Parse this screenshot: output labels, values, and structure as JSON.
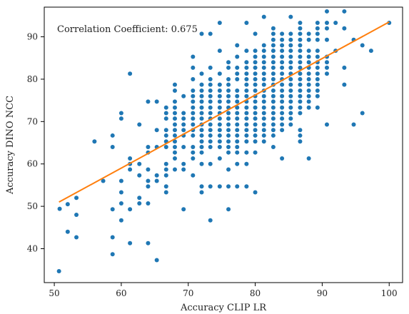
{
  "chart_data": {
    "type": "scatter",
    "xlabel": "Accuracy CLIP LR",
    "ylabel": "Accuracy DINO NCC",
    "annotation": "Correlation Coefficient: 0.675",
    "xlim": [
      48.5,
      102
    ],
    "ylim": [
      32,
      97
    ],
    "xticks": [
      50,
      60,
      70,
      80,
      90,
      100
    ],
    "yticks": [
      40,
      50,
      60,
      70,
      80,
      90
    ],
    "grid": false,
    "colors": {
      "points": "#1f77b4",
      "fit": "#ff7f0e",
      "axes": "#000000"
    },
    "fit_line": {
      "x": [
        50.7,
        100
      ],
      "y": [
        51.0,
        93.5
      ]
    },
    "points": [
      [
        50.7,
        34.7
      ],
      [
        50.8,
        49.4
      ],
      [
        52,
        50.5
      ],
      [
        52,
        44
      ],
      [
        53.3,
        52
      ],
      [
        53.3,
        48
      ],
      [
        53.3,
        42.7
      ],
      [
        56,
        65.3
      ],
      [
        57.3,
        56
      ],
      [
        58.7,
        66.7
      ],
      [
        58.7,
        64
      ],
      [
        58.7,
        49.3
      ],
      [
        58.7,
        42.7
      ],
      [
        58.7,
        38.7
      ],
      [
        60,
        72
      ],
      [
        60,
        70.7
      ],
      [
        60,
        56
      ],
      [
        60,
        53.3
      ],
      [
        60,
        50.7
      ],
      [
        60,
        46.7
      ],
      [
        61.3,
        81.3
      ],
      [
        61.3,
        61.3
      ],
      [
        61.3,
        60
      ],
      [
        61.3,
        58.7
      ],
      [
        61.3,
        49.3
      ],
      [
        61.3,
        41.3
      ],
      [
        62.7,
        69.3
      ],
      [
        62.7,
        60
      ],
      [
        62.7,
        57.3
      ],
      [
        62.7,
        52
      ],
      [
        62.7,
        50.7
      ],
      [
        64,
        74.7
      ],
      [
        64,
        64
      ],
      [
        64,
        62.7
      ],
      [
        64,
        58.7
      ],
      [
        64,
        56
      ],
      [
        64,
        54.7
      ],
      [
        64,
        50.7
      ],
      [
        64,
        41.3
      ],
      [
        65.3,
        74.7
      ],
      [
        65.3,
        68
      ],
      [
        65.3,
        64
      ],
      [
        65.3,
        57.3
      ],
      [
        65.3,
        56
      ],
      [
        65.3,
        37.3
      ],
      [
        66.7,
        73.3
      ],
      [
        66.7,
        72
      ],
      [
        66.7,
        70.7
      ],
      [
        66.7,
        68
      ],
      [
        66.7,
        66.7
      ],
      [
        66.7,
        65.3
      ],
      [
        66.7,
        64
      ],
      [
        66.7,
        60
      ],
      [
        66.7,
        58.7
      ],
      [
        66.7,
        57.3
      ],
      [
        66.7,
        54.7
      ],
      [
        66.7,
        53.3
      ],
      [
        68,
        78.7
      ],
      [
        68,
        77.3
      ],
      [
        68,
        74.7
      ],
      [
        68,
        73.3
      ],
      [
        68,
        72
      ],
      [
        68,
        70.7
      ],
      [
        68,
        69.3
      ],
      [
        68,
        68
      ],
      [
        68,
        66.7
      ],
      [
        68,
        65.3
      ],
      [
        68,
        64
      ],
      [
        68,
        62.7
      ],
      [
        68,
        61.3
      ],
      [
        68,
        58.7
      ],
      [
        69.3,
        76
      ],
      [
        69.3,
        72
      ],
      [
        69.3,
        70.7
      ],
      [
        69.3,
        69.3
      ],
      [
        69.3,
        68
      ],
      [
        69.3,
        66.7
      ],
      [
        69.3,
        64
      ],
      [
        69.3,
        60
      ],
      [
        69.3,
        58.7
      ],
      [
        69.3,
        49.3
      ],
      [
        70.7,
        85.3
      ],
      [
        70.7,
        82.7
      ],
      [
        70.7,
        80
      ],
      [
        70.7,
        77.3
      ],
      [
        70.7,
        76
      ],
      [
        70.7,
        74.7
      ],
      [
        70.7,
        73.3
      ],
      [
        70.7,
        72
      ],
      [
        70.7,
        70.7
      ],
      [
        70.7,
        69.3
      ],
      [
        70.7,
        68
      ],
      [
        70.7,
        66.7
      ],
      [
        70.7,
        64
      ],
      [
        70.7,
        62.7
      ],
      [
        70.7,
        61.3
      ],
      [
        70.7,
        57.3
      ],
      [
        72,
        90.7
      ],
      [
        72,
        81.3
      ],
      [
        72,
        78.7
      ],
      [
        72,
        77.3
      ],
      [
        72,
        76
      ],
      [
        72,
        74.7
      ],
      [
        72,
        73.3
      ],
      [
        72,
        72
      ],
      [
        72,
        70.7
      ],
      [
        72,
        69.3
      ],
      [
        72,
        68
      ],
      [
        72,
        66.7
      ],
      [
        72,
        65.3
      ],
      [
        72,
        64
      ],
      [
        72,
        62.7
      ],
      [
        72,
        60
      ],
      [
        72,
        54.7
      ],
      [
        72,
        53.3
      ],
      [
        73.3,
        90.7
      ],
      [
        73.3,
        82.7
      ],
      [
        73.3,
        80
      ],
      [
        73.3,
        78.7
      ],
      [
        73.3,
        77.3
      ],
      [
        73.3,
        76
      ],
      [
        73.3,
        74.7
      ],
      [
        73.3,
        73.3
      ],
      [
        73.3,
        72
      ],
      [
        73.3,
        70.7
      ],
      [
        73.3,
        69.3
      ],
      [
        73.3,
        68
      ],
      [
        73.3,
        66.7
      ],
      [
        73.3,
        65.3
      ],
      [
        73.3,
        64
      ],
      [
        73.3,
        60
      ],
      [
        73.3,
        54.7
      ],
      [
        73.3,
        46.7
      ],
      [
        74.7,
        93.3
      ],
      [
        74.7,
        86.7
      ],
      [
        74.7,
        81.3
      ],
      [
        74.7,
        78.7
      ],
      [
        74.7,
        77.3
      ],
      [
        74.7,
        76
      ],
      [
        74.7,
        74.7
      ],
      [
        74.7,
        73.3
      ],
      [
        74.7,
        72
      ],
      [
        74.7,
        70.7
      ],
      [
        74.7,
        69.3
      ],
      [
        74.7,
        68
      ],
      [
        74.7,
        66.7
      ],
      [
        74.7,
        65.3
      ],
      [
        74.7,
        64
      ],
      [
        74.7,
        61.3
      ],
      [
        74.7,
        54.7
      ],
      [
        76,
        84
      ],
      [
        76,
        82.7
      ],
      [
        76,
        80
      ],
      [
        76,
        78.7
      ],
      [
        76,
        77.3
      ],
      [
        76,
        76
      ],
      [
        76,
        74.7
      ],
      [
        76,
        73.3
      ],
      [
        76,
        72
      ],
      [
        76,
        70.7
      ],
      [
        76,
        69.3
      ],
      [
        76,
        68
      ],
      [
        76,
        66.7
      ],
      [
        76,
        65.3
      ],
      [
        76,
        64
      ],
      [
        76,
        62.7
      ],
      [
        76,
        58.7
      ],
      [
        76,
        54.7
      ],
      [
        76,
        49.3
      ],
      [
        77.3,
        88
      ],
      [
        77.3,
        85.3
      ],
      [
        77.3,
        82.7
      ],
      [
        77.3,
        81.3
      ],
      [
        77.3,
        80
      ],
      [
        77.3,
        77.3
      ],
      [
        77.3,
        76
      ],
      [
        77.3,
        74.7
      ],
      [
        77.3,
        73.3
      ],
      [
        77.3,
        72
      ],
      [
        77.3,
        70.7
      ],
      [
        77.3,
        69.3
      ],
      [
        77.3,
        68
      ],
      [
        77.3,
        66.7
      ],
      [
        77.3,
        65.3
      ],
      [
        77.3,
        64
      ],
      [
        77.3,
        62.7
      ],
      [
        77.3,
        60
      ],
      [
        77.3,
        54.7
      ],
      [
        78.7,
        93.3
      ],
      [
        78.7,
        86.7
      ],
      [
        78.7,
        84
      ],
      [
        78.7,
        82.7
      ],
      [
        78.7,
        81.3
      ],
      [
        78.7,
        80
      ],
      [
        78.7,
        78.7
      ],
      [
        78.7,
        77.3
      ],
      [
        78.7,
        76
      ],
      [
        78.7,
        74.7
      ],
      [
        78.7,
        73.3
      ],
      [
        78.7,
        72
      ],
      [
        78.7,
        70.7
      ],
      [
        78.7,
        69.3
      ],
      [
        78.7,
        68
      ],
      [
        78.7,
        66.7
      ],
      [
        78.7,
        65.3
      ],
      [
        78.7,
        62.7
      ],
      [
        78.7,
        60
      ],
      [
        78.7,
        54.7
      ],
      [
        80,
        90.7
      ],
      [
        80,
        86.7
      ],
      [
        80,
        85.3
      ],
      [
        80,
        84
      ],
      [
        80,
        82.7
      ],
      [
        80,
        81.3
      ],
      [
        80,
        80
      ],
      [
        80,
        78.7
      ],
      [
        80,
        77.3
      ],
      [
        80,
        76
      ],
      [
        80,
        74.7
      ],
      [
        80,
        73.3
      ],
      [
        80,
        72
      ],
      [
        80,
        70.7
      ],
      [
        80,
        69.3
      ],
      [
        80,
        68
      ],
      [
        80,
        66.7
      ],
      [
        80,
        65.3
      ],
      [
        80,
        62.7
      ],
      [
        80,
        53.3
      ],
      [
        81.3,
        94.7
      ],
      [
        81.3,
        88
      ],
      [
        81.3,
        86.7
      ],
      [
        81.3,
        85.3
      ],
      [
        81.3,
        84
      ],
      [
        81.3,
        82.7
      ],
      [
        81.3,
        81.3
      ],
      [
        81.3,
        80
      ],
      [
        81.3,
        78.7
      ],
      [
        81.3,
        77.3
      ],
      [
        81.3,
        76
      ],
      [
        81.3,
        74.7
      ],
      [
        81.3,
        73.3
      ],
      [
        81.3,
        72
      ],
      [
        81.3,
        70.7
      ],
      [
        81.3,
        69.3
      ],
      [
        81.3,
        68
      ],
      [
        81.3,
        66.7
      ],
      [
        81.3,
        65.3
      ],
      [
        82.7,
        92
      ],
      [
        82.7,
        90.7
      ],
      [
        82.7,
        89.3
      ],
      [
        82.7,
        88
      ],
      [
        82.7,
        86.7
      ],
      [
        82.7,
        85.3
      ],
      [
        82.7,
        84
      ],
      [
        82.7,
        82.7
      ],
      [
        82.7,
        81.3
      ],
      [
        82.7,
        80
      ],
      [
        82.7,
        78.7
      ],
      [
        82.7,
        77.3
      ],
      [
        82.7,
        76
      ],
      [
        82.7,
        74.7
      ],
      [
        82.7,
        73.3
      ],
      [
        82.7,
        72
      ],
      [
        82.7,
        70.7
      ],
      [
        82.7,
        69.3
      ],
      [
        82.7,
        68
      ],
      [
        82.7,
        66.7
      ],
      [
        82.7,
        64
      ],
      [
        84,
        90.7
      ],
      [
        84,
        89.3
      ],
      [
        84,
        88
      ],
      [
        84,
        86.7
      ],
      [
        84,
        85.3
      ],
      [
        84,
        84
      ],
      [
        84,
        82.7
      ],
      [
        84,
        81.3
      ],
      [
        84,
        80
      ],
      [
        84,
        78.7
      ],
      [
        84,
        77.3
      ],
      [
        84,
        76
      ],
      [
        84,
        74.7
      ],
      [
        84,
        73.3
      ],
      [
        84,
        72
      ],
      [
        84,
        70.7
      ],
      [
        84,
        69.3
      ],
      [
        84,
        68
      ],
      [
        84,
        61.3
      ],
      [
        85.3,
        94.7
      ],
      [
        85.3,
        90.7
      ],
      [
        85.3,
        89.3
      ],
      [
        85.3,
        88
      ],
      [
        85.3,
        86.7
      ],
      [
        85.3,
        85.3
      ],
      [
        85.3,
        84
      ],
      [
        85.3,
        82.7
      ],
      [
        85.3,
        81.3
      ],
      [
        85.3,
        80
      ],
      [
        85.3,
        78.7
      ],
      [
        85.3,
        77.3
      ],
      [
        85.3,
        76
      ],
      [
        85.3,
        74.7
      ],
      [
        85.3,
        73.3
      ],
      [
        85.3,
        72
      ],
      [
        85.3,
        70.7
      ],
      [
        85.3,
        69.3
      ],
      [
        86.7,
        93.3
      ],
      [
        86.7,
        92
      ],
      [
        86.7,
        90.7
      ],
      [
        86.7,
        89.3
      ],
      [
        86.7,
        88
      ],
      [
        86.7,
        86.7
      ],
      [
        86.7,
        85.3
      ],
      [
        86.7,
        84
      ],
      [
        86.7,
        82.7
      ],
      [
        86.7,
        81.3
      ],
      [
        86.7,
        80
      ],
      [
        86.7,
        78.7
      ],
      [
        86.7,
        77.3
      ],
      [
        86.7,
        76
      ],
      [
        86.7,
        74.7
      ],
      [
        86.7,
        73.3
      ],
      [
        86.7,
        72
      ],
      [
        86.7,
        68
      ],
      [
        86.7,
        66.7
      ],
      [
        86.7,
        65.3
      ],
      [
        88,
        90.7
      ],
      [
        88,
        89.3
      ],
      [
        88,
        86.7
      ],
      [
        88,
        85.3
      ],
      [
        88,
        84
      ],
      [
        88,
        82.7
      ],
      [
        88,
        81.3
      ],
      [
        88,
        80
      ],
      [
        88,
        78.7
      ],
      [
        88,
        77.3
      ],
      [
        88,
        76
      ],
      [
        88,
        74.7
      ],
      [
        88,
        73.3
      ],
      [
        88,
        61.3
      ],
      [
        89.3,
        93.3
      ],
      [
        89.3,
        92
      ],
      [
        89.3,
        90.7
      ],
      [
        89.3,
        89.3
      ],
      [
        89.3,
        86.7
      ],
      [
        89.3,
        85.3
      ],
      [
        89.3,
        84
      ],
      [
        89.3,
        82.7
      ],
      [
        89.3,
        81.3
      ],
      [
        89.3,
        80
      ],
      [
        89.3,
        78.7
      ],
      [
        89.3,
        77.3
      ],
      [
        89.3,
        76
      ],
      [
        89.3,
        73.3
      ],
      [
        90.7,
        96
      ],
      [
        90.7,
        93.3
      ],
      [
        90.7,
        92
      ],
      [
        90.7,
        89.3
      ],
      [
        90.7,
        85.3
      ],
      [
        90.7,
        84
      ],
      [
        90.7,
        82.7
      ],
      [
        90.7,
        81.3
      ],
      [
        90.7,
        69.3
      ],
      [
        92,
        93.3
      ],
      [
        92,
        86.7
      ],
      [
        93.3,
        96
      ],
      [
        93.3,
        92
      ],
      [
        93.3,
        82.7
      ],
      [
        93.3,
        78.7
      ],
      [
        94.7,
        89.3
      ],
      [
        94.7,
        69.3
      ],
      [
        96,
        88
      ],
      [
        96,
        72
      ],
      [
        97.3,
        86.7
      ],
      [
        100,
        93.3
      ]
    ]
  }
}
